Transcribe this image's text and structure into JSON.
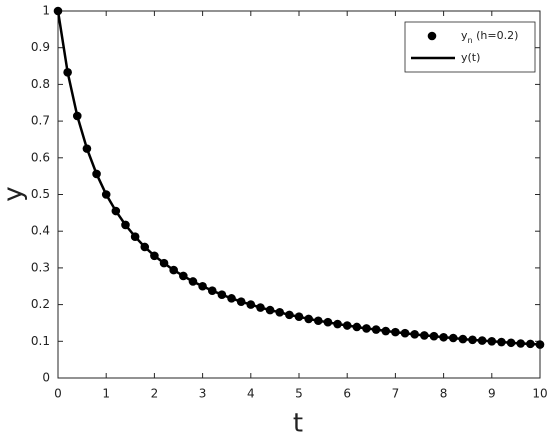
{
  "chart_data": {
    "type": "line",
    "xlabel": "t",
    "ylabel": "y",
    "x": [
      0,
      0.2,
      0.4,
      0.6,
      0.8,
      1,
      1.2,
      1.4,
      1.6,
      1.8,
      2,
      2.2,
      2.4,
      2.6,
      2.8,
      3,
      3.2,
      3.4,
      3.6,
      3.8,
      4,
      4.2,
      4.4,
      4.6,
      4.8,
      5,
      5.2,
      5.4,
      5.6,
      5.8,
      6,
      6.2,
      6.4,
      6.6,
      6.8,
      7,
      7.2,
      7.4,
      7.6,
      7.8,
      8,
      8.2,
      8.4,
      8.6,
      8.8,
      9,
      9.2,
      9.4,
      9.6,
      9.8,
      10
    ],
    "series": [
      {
        "name": "yn (h=0.2)",
        "type": "scatter",
        "color": "#000000",
        "values": [
          1,
          0.833,
          0.714,
          0.625,
          0.556,
          0.5,
          0.455,
          0.417,
          0.385,
          0.357,
          0.333,
          0.313,
          0.294,
          0.278,
          0.263,
          0.25,
          0.238,
          0.227,
          0.217,
          0.208,
          0.2,
          0.192,
          0.185,
          0.179,
          0.172,
          0.167,
          0.161,
          0.156,
          0.152,
          0.147,
          0.143,
          0.139,
          0.135,
          0.132,
          0.128,
          0.125,
          0.122,
          0.119,
          0.116,
          0.114,
          0.111,
          0.109,
          0.106,
          0.104,
          0.102,
          0.1,
          0.098,
          0.096,
          0.094,
          0.093,
          0.091
        ]
      },
      {
        "name": "y(t)",
        "type": "line",
        "color": "#000000",
        "values": [
          1,
          0.833,
          0.714,
          0.625,
          0.556,
          0.5,
          0.455,
          0.417,
          0.385,
          0.357,
          0.333,
          0.313,
          0.294,
          0.278,
          0.263,
          0.25,
          0.238,
          0.227,
          0.217,
          0.208,
          0.2,
          0.192,
          0.185,
          0.179,
          0.172,
          0.167,
          0.161,
          0.156,
          0.152,
          0.147,
          0.143,
          0.139,
          0.135,
          0.132,
          0.128,
          0.125,
          0.122,
          0.119,
          0.116,
          0.114,
          0.111,
          0.109,
          0.106,
          0.104,
          0.102,
          0.1,
          0.098,
          0.096,
          0.094,
          0.093,
          0.091
        ]
      }
    ],
    "xlim": [
      0,
      10
    ],
    "xticks": [
      0,
      1,
      2,
      3,
      4,
      5,
      6,
      7,
      8,
      9,
      10
    ],
    "ylim": [
      0,
      1
    ],
    "yticks": [
      0,
      0.1,
      0.2,
      0.3,
      0.4,
      0.5,
      0.6,
      0.7,
      0.8,
      0.9,
      1
    ],
    "grid": false,
    "legend": "top-right"
  }
}
